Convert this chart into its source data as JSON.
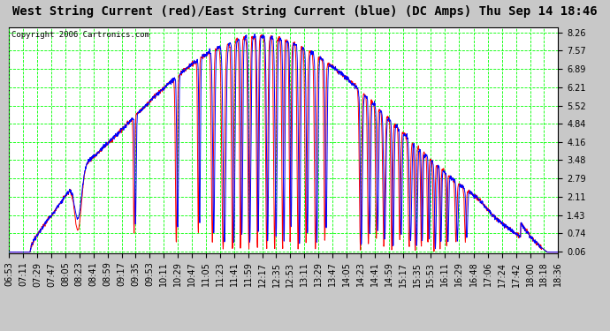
{
  "title": "West String Current (red)/East String Current (blue) (DC Amps) Thu Sep 14 18:46",
  "copyright": "Copyright 2006 Cartronics.com",
  "background_color": "#c8c8c8",
  "plot_bg_color": "#ffffff",
  "grid_color": "#00ff00",
  "line_color_west": "#ff0000",
  "line_color_east": "#0000ff",
  "yticks": [
    0.06,
    0.74,
    1.43,
    2.11,
    2.79,
    3.48,
    4.16,
    4.84,
    5.52,
    6.21,
    6.89,
    7.57,
    8.26
  ],
  "ylim": [
    0.0,
    8.45
  ],
  "x_labels": [
    "06:53",
    "07:11",
    "07:29",
    "07:47",
    "08:05",
    "08:23",
    "08:41",
    "08:59",
    "09:17",
    "09:35",
    "09:53",
    "10:11",
    "10:29",
    "10:47",
    "11:05",
    "11:23",
    "11:41",
    "11:59",
    "12:17",
    "12:35",
    "12:53",
    "13:11",
    "13:29",
    "13:47",
    "14:05",
    "14:23",
    "14:41",
    "14:59",
    "15:17",
    "15:35",
    "15:53",
    "16:11",
    "16:29",
    "16:48",
    "17:06",
    "17:24",
    "17:42",
    "18:00",
    "18:18",
    "18:36"
  ],
  "title_fontsize": 10,
  "tick_fontsize": 7,
  "copyright_fontsize": 6.5
}
